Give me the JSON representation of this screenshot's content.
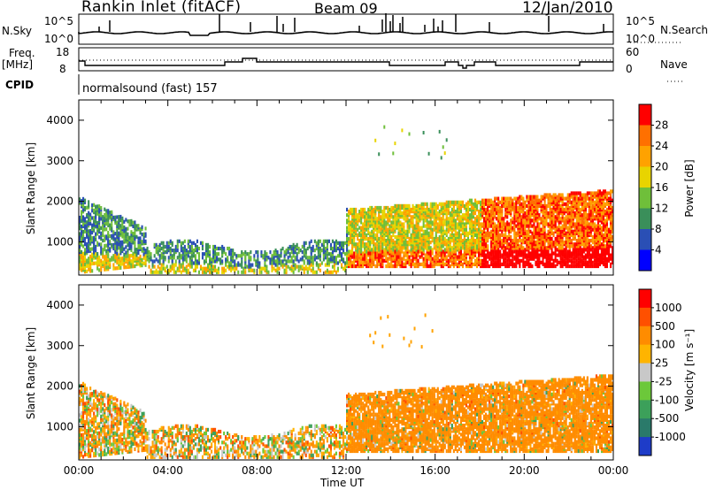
{
  "header": {
    "station": "Rankin Inlet (fitACF)",
    "beam": "Beam 09",
    "date": "12/Jan/2010"
  },
  "noise_panel": {
    "left_label": "N.Sky",
    "right_label": "N.Search",
    "left_ticks": [
      "10^5",
      "10^0"
    ],
    "right_ticks": [
      "10^5",
      "10^0"
    ]
  },
  "freq_panel": {
    "left_label_line1": "Freq.",
    "left_label_line2": "[MHz]",
    "left_ticks": [
      "18",
      "8"
    ],
    "right_label": "Nave",
    "right_ticks": [
      "60",
      "0"
    ]
  },
  "cpid": {
    "label": "CPID",
    "value": "normalsound (fast) 157"
  },
  "chart_data": [
    {
      "type": "heatmap",
      "name": "Power",
      "ylabel": "Slant Range [km]",
      "yticks": [
        "1000",
        "2000",
        "3000",
        "4000"
      ],
      "ylim": [
        180,
        4500
      ],
      "colorbar_label": "Power [dB]",
      "colorbar_ticks": [
        "4",
        "8",
        "12",
        "16",
        "20",
        "24",
        "28"
      ],
      "colorbar_colors": [
        "#0000ff",
        "#2a4fb5",
        "#3a8f5a",
        "#6fbf3a",
        "#e8d400",
        "#ffa200",
        "#ff7000",
        "#ff0000"
      ]
    },
    {
      "type": "heatmap",
      "name": "Velocity",
      "ylabel": "Slant Range [km]",
      "yticks": [
        "1000",
        "2000",
        "3000",
        "4000"
      ],
      "ylim": [
        180,
        4500
      ],
      "colorbar_label": "Velocity [m s⁻¹]",
      "colorbar_ticks": [
        "1000",
        "500",
        "100",
        "25",
        "-25",
        "-100",
        "-500",
        "-1000"
      ],
      "colorbar_colors": [
        "#1e3cc8",
        "#2a7a6a",
        "#3ca05a",
        "#6cc83a",
        "#c8c8c8",
        "#ffb400",
        "#ff8c00",
        "#ff5000",
        "#ff0000"
      ]
    }
  ],
  "xaxis": {
    "xlabel": "Time UT",
    "xticks": [
      "00:00",
      "04:00",
      "08:00",
      "12:00",
      "16:00",
      "20:00",
      "00:00"
    ]
  }
}
